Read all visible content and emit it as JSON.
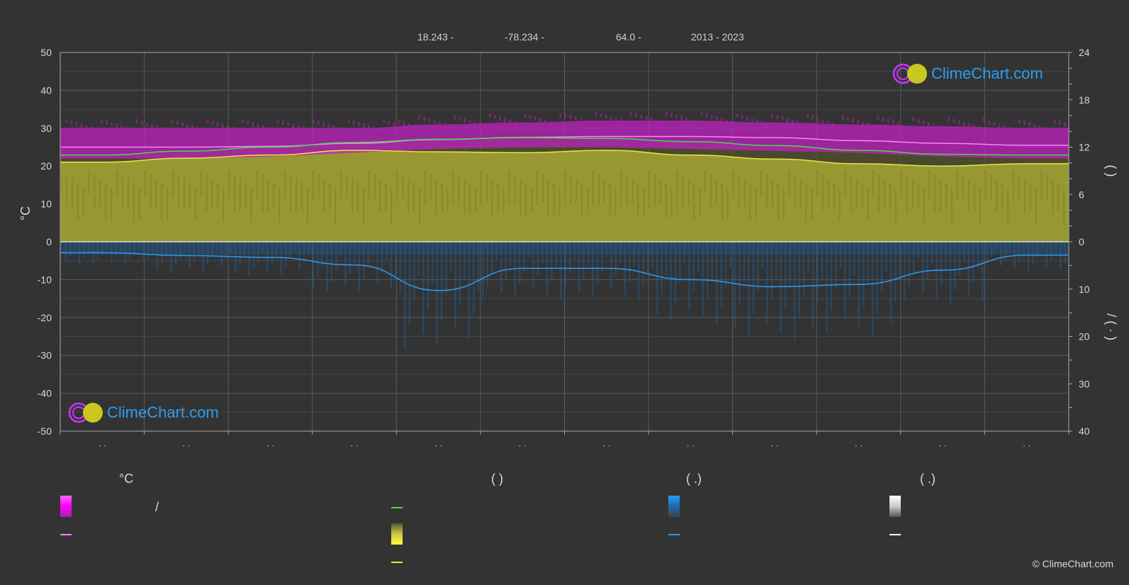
{
  "header": {
    "lat": "18.243 -",
    "lon": "-78.234 -",
    "elev": "64.0 -",
    "years": "2013 - 2023"
  },
  "axes": {
    "left_unit": "°C",
    "right_top_paren": "(    )",
    "right_bottom_paren": "/  (  ·  )"
  },
  "chart_data": {
    "type": "area",
    "months": [
      "· ·",
      "· ·",
      "· ·",
      "· ·",
      "· ·",
      "· ·",
      "· ·",
      "· ·",
      "· ·",
      "· ·",
      "· ·",
      "· ·"
    ],
    "y_left": {
      "label": "°C",
      "lim": [
        -50,
        50
      ],
      "ticks": [
        50,
        40,
        30,
        20,
        10,
        0,
        -10,
        -20,
        -30,
        -40,
        -50
      ]
    },
    "y_right_top": {
      "lim": [
        0,
        24
      ],
      "ticks": [
        24,
        18,
        12,
        6,
        0
      ]
    },
    "y_right_bottom": {
      "lim": [
        0,
        40
      ],
      "ticks": [
        0,
        10,
        20,
        30,
        40
      ]
    },
    "series": [
      {
        "key": "temp_max_band",
        "color": "#ff00ff",
        "values": [
          30,
          30,
          30,
          30,
          31,
          31.5,
          32,
          32,
          31.5,
          31,
          30.5,
          30
        ]
      },
      {
        "key": "temp_min_band",
        "color": "#ff00ff",
        "values": [
          22,
          22,
          22.5,
          23.5,
          24.5,
          25,
          25,
          24.5,
          24,
          23.5,
          22.5,
          22
        ]
      },
      {
        "key": "temp_mean",
        "color": "#ff80ff",
        "values": [
          25.0,
          25.0,
          25.2,
          26.0,
          27.0,
          27.6,
          27.8,
          27.8,
          27.5,
          26.7,
          26.0,
          25.5
        ]
      },
      {
        "key": "daylight",
        "color": "#44dd44",
        "values": [
          11.0,
          11.5,
          12.0,
          12.6,
          13.0,
          13.2,
          13.1,
          12.7,
          12.2,
          11.6,
          11.1,
          11.0
        ]
      },
      {
        "key": "sunshine",
        "color": "#e8e840",
        "values": [
          10.1,
          10.6,
          11.0,
          11.6,
          11.4,
          11.3,
          11.6,
          11.0,
          10.5,
          9.9,
          9.6,
          9.9
        ]
      },
      {
        "key": "precip_mean",
        "color": "#2a9df4",
        "values": [
          2.3,
          2.9,
          3.3,
          4.9,
          10.3,
          5.6,
          5.6,
          8.0,
          9.5,
          9.0,
          6.0,
          2.8
        ]
      }
    ]
  },
  "legend": {
    "col1_head": "°C",
    "col2_head": "(          )",
    "col3_head": "(    .)",
    "col4_head": "(    .)",
    "col1_row1_text": "/",
    "colors": {
      "magenta": "#ff00ff",
      "pink": "#ff80ff",
      "green": "#44dd44",
      "yellow": "#e8e840",
      "blue": "#2a9df4",
      "white": "#ffffff"
    }
  },
  "logo": {
    "text": "ClimeChart.com"
  },
  "copyright": "© ClimeChart.com"
}
